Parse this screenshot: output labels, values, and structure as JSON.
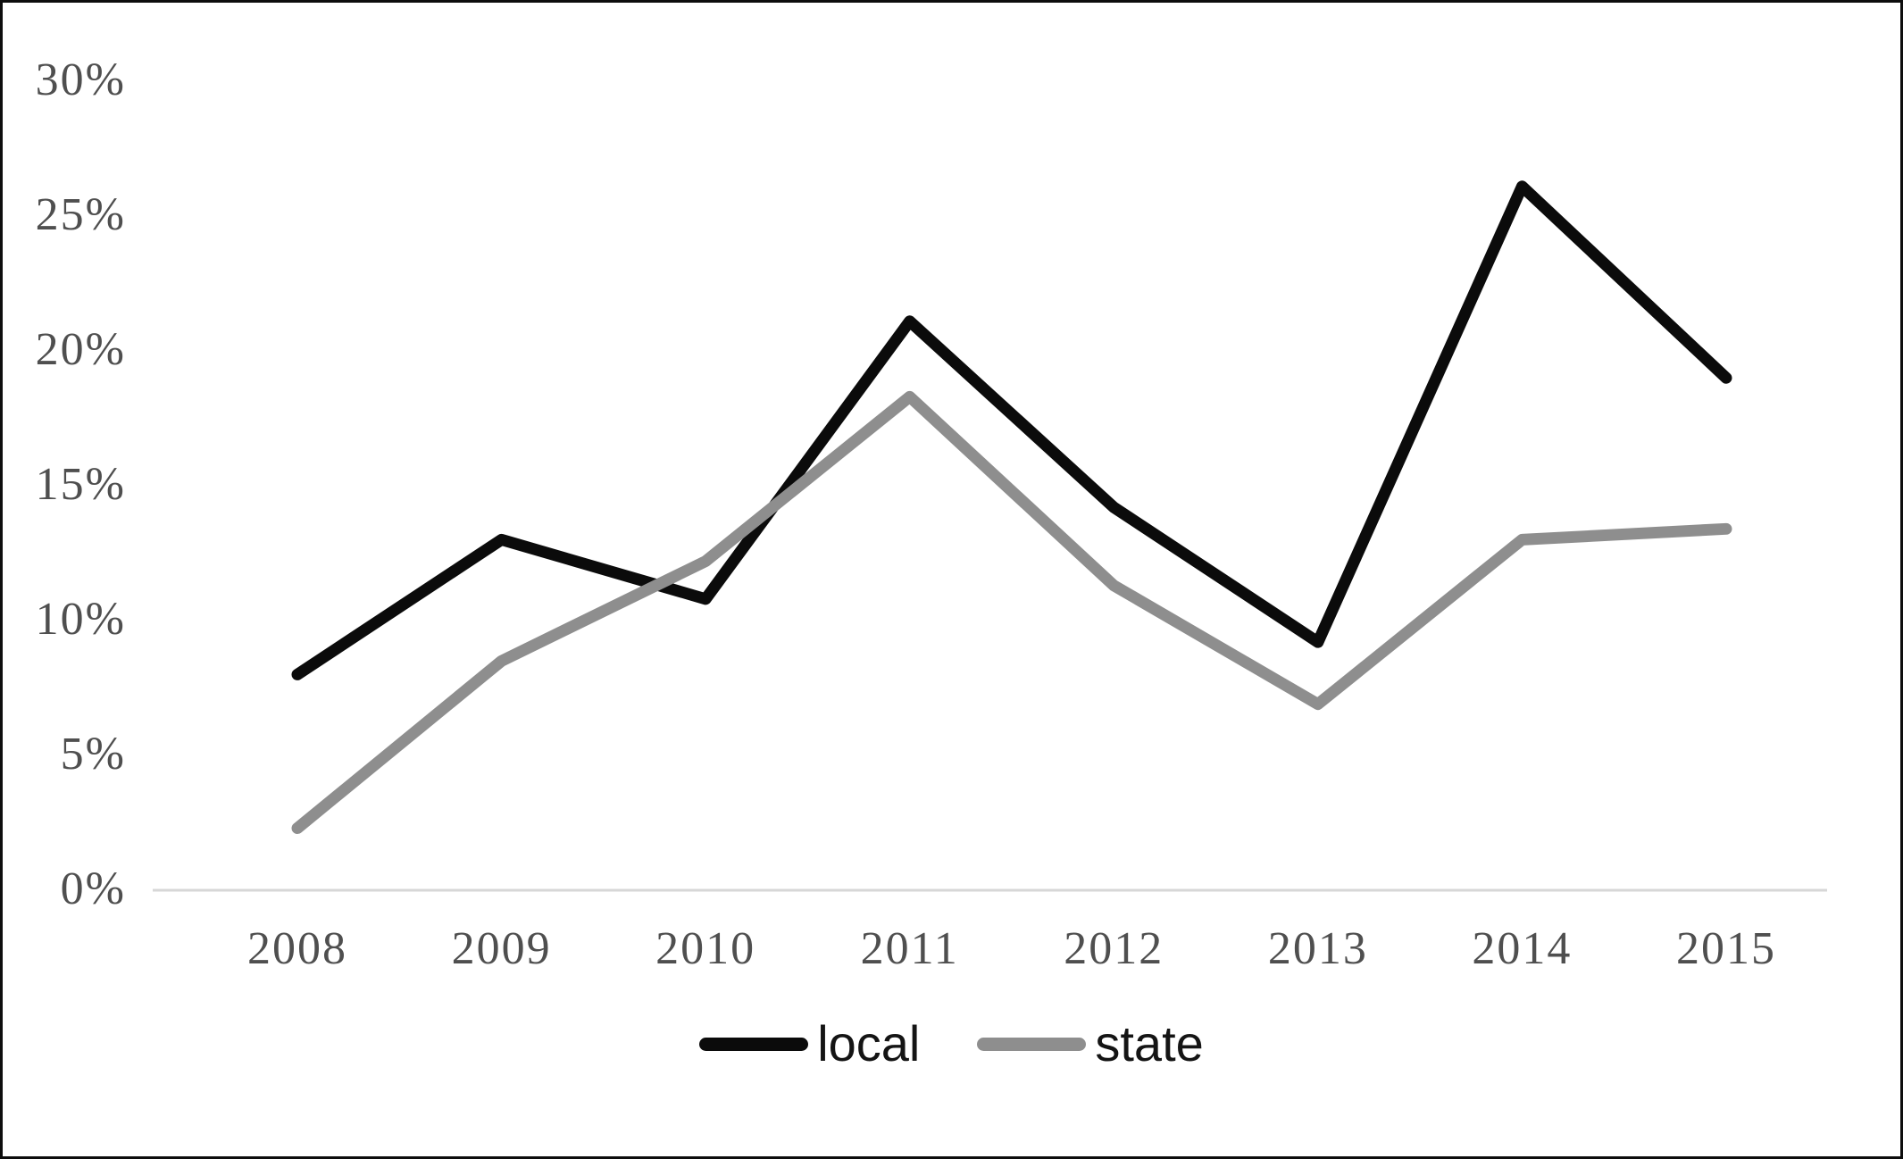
{
  "chart_data": {
    "type": "line",
    "categories": [
      "2008",
      "2009",
      "2010",
      "2011",
      "2012",
      "2013",
      "2014",
      "2015"
    ],
    "series": [
      {
        "name": "local",
        "color": "#0b0b0b",
        "values": [
          8.0,
          13.0,
          10.8,
          21.1,
          14.2,
          9.2,
          26.1,
          19.0
        ]
      },
      {
        "name": "state",
        "color": "#8e8e8e",
        "values": [
          2.3,
          8.5,
          12.2,
          18.3,
          11.3,
          6.9,
          13.0,
          13.4
        ]
      }
    ],
    "yticks": [
      {
        "value": 30,
        "label": "30%"
      },
      {
        "value": 25,
        "label": "25%"
      },
      {
        "value": 20,
        "label": "20%"
      },
      {
        "value": 15,
        "label": "15%"
      },
      {
        "value": 10,
        "label": "10%"
      },
      {
        "value": 5,
        "label": "5%"
      },
      {
        "value": 0,
        "label": "0%"
      }
    ],
    "ylim": [
      0,
      30
    ],
    "xlabel": "",
    "ylabel": "",
    "title": "",
    "grid": false,
    "baseline_color": "#d7d7d7",
    "tick_text_color": "#4f4f4f",
    "legend_position": "bottom",
    "legend": [
      "local",
      "state"
    ]
  }
}
